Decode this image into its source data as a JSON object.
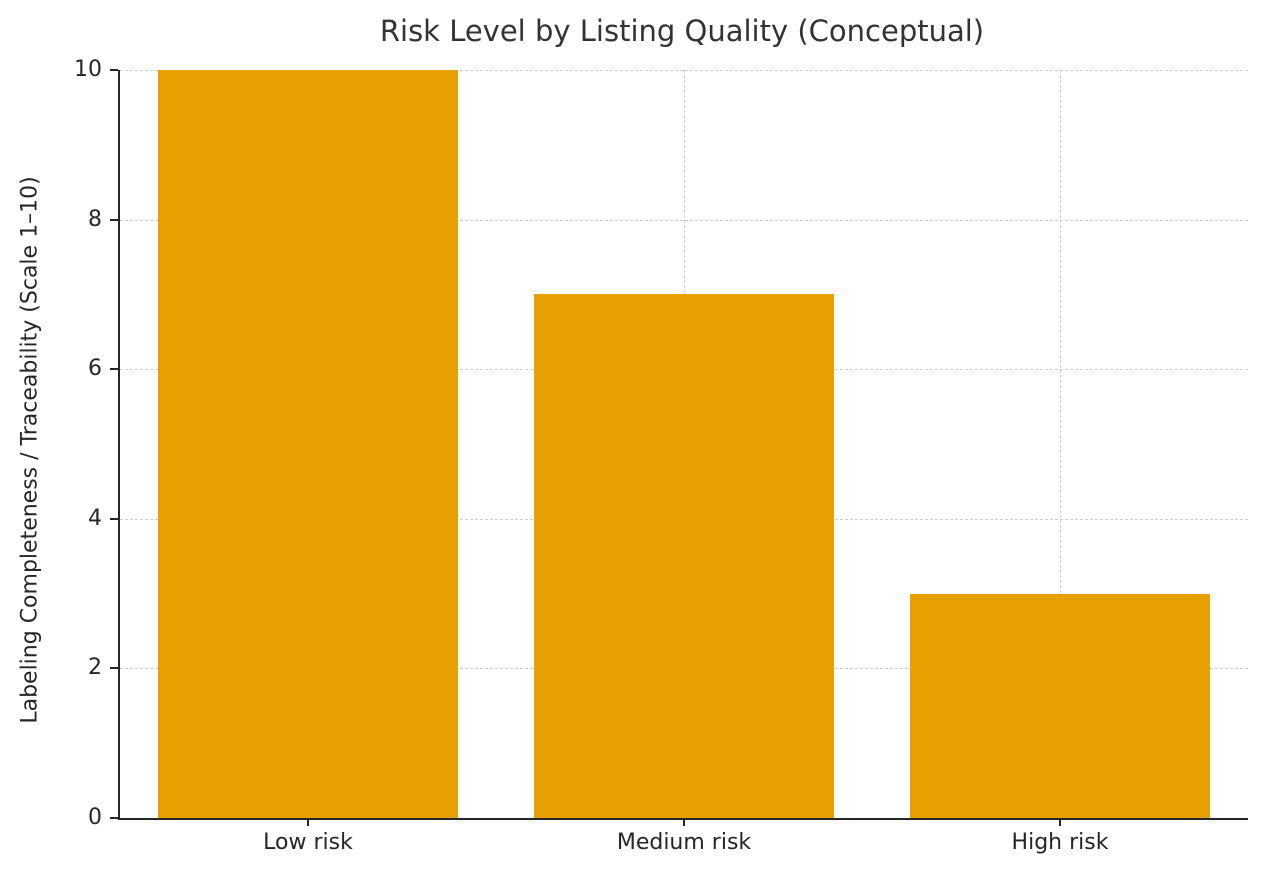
{
  "chart_data": {
    "type": "bar",
    "title": "Risk Level by Listing Quality (Conceptual)",
    "xlabel": "",
    "ylabel": "Labeling Completeness / Traceability (Scale 1–10)",
    "categories": [
      "Low risk",
      "Medium risk",
      "High risk"
    ],
    "values": [
      10,
      7,
      3
    ],
    "ylim": [
      0,
      10
    ],
    "yticks": [
      0,
      2,
      4,
      6,
      8,
      10
    ],
    "bar_color": "#e6a000",
    "grid": {
      "enabled": true,
      "style": "dashed",
      "color": "#cccccc",
      "horizontal": true,
      "vertical": true
    },
    "legend": "none",
    "bar_width_fraction": 0.8,
    "background_color": "#ffffff",
    "text_color": "#262626",
    "title_color": "#333333"
  }
}
